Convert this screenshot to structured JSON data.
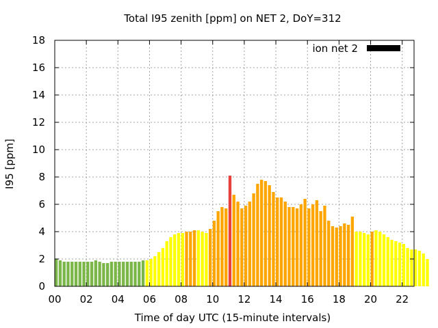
{
  "chart_data": {
    "type": "bar",
    "title": "Total I95 zenith [ppm] on NET 2, DoY=312",
    "xlabel": "Time of day UTC (15-minute intervals)",
    "ylabel": "I95 [ppm]",
    "xlim": [
      0,
      22.75
    ],
    "ylim": [
      0,
      18
    ],
    "grid": true,
    "legend_position": "top-right",
    "legend": [
      {
        "label": "ion net 2",
        "color": "#000000"
      }
    ],
    "x_ticks": [
      0,
      2,
      4,
      6,
      8,
      10,
      12,
      14,
      16,
      18,
      20,
      22
    ],
    "x_tick_labels": [
      "00",
      "02",
      "04",
      "06",
      "08",
      "10",
      "12",
      "14",
      "16",
      "18",
      "20",
      "22"
    ],
    "y_ticks": [
      0,
      2,
      4,
      6,
      8,
      10,
      12,
      14,
      16,
      18
    ],
    "y_tick_labels": [
      "0",
      "2",
      "4",
      "6",
      "8",
      "10",
      "12",
      "14",
      "16",
      "18"
    ],
    "interval_hours": 0.25,
    "bar_start_hour": 0,
    "values": [
      2.0,
      1.9,
      1.8,
      1.8,
      1.8,
      1.8,
      1.8,
      1.8,
      1.8,
      1.8,
      1.9,
      1.8,
      1.7,
      1.7,
      1.8,
      1.8,
      1.8,
      1.8,
      1.8,
      1.8,
      1.8,
      1.8,
      1.9,
      1.9,
      2.0,
      2.2,
      2.5,
      2.8,
      3.3,
      3.6,
      3.8,
      3.9,
      3.9,
      4.0,
      4.0,
      4.1,
      4.1,
      4.0,
      3.9,
      4.2,
      4.8,
      5.5,
      5.8,
      5.7,
      8.1,
      6.7,
      6.2,
      5.7,
      5.9,
      6.2,
      6.8,
      7.5,
      7.8,
      7.7,
      7.4,
      6.9,
      6.5,
      6.5,
      6.2,
      5.8,
      5.8,
      5.7,
      6.0,
      6.4,
      5.7,
      6.0,
      6.3,
      5.5,
      5.9,
      4.8,
      4.4,
      4.3,
      4.4,
      4.6,
      4.5,
      5.1,
      4.0,
      4.0,
      3.9,
      3.8,
      4.0,
      4.1,
      4.0,
      3.8,
      3.6,
      3.4,
      3.3,
      3.2,
      3.1,
      2.8,
      2.7,
      2.7,
      2.6,
      2.4,
      2.0
    ],
    "level_colors": {
      "green": "#7ab648",
      "yellow": "#ffff00",
      "orange": "#ffa500",
      "red": "#e8413c"
    },
    "bar_levels": [
      "green",
      "green",
      "green",
      "green",
      "green",
      "green",
      "green",
      "green",
      "green",
      "green",
      "green",
      "green",
      "green",
      "green",
      "green",
      "green",
      "green",
      "green",
      "green",
      "green",
      "green",
      "green",
      "green",
      "yellow",
      "yellow",
      "yellow",
      "yellow",
      "yellow",
      "yellow",
      "yellow",
      "yellow",
      "yellow",
      "yellow",
      "orange",
      "orange",
      "orange",
      "yellow",
      "yellow",
      "yellow",
      "orange",
      "orange",
      "orange",
      "orange",
      "orange",
      "red",
      "orange",
      "orange",
      "orange",
      "orange",
      "orange",
      "orange",
      "orange",
      "orange",
      "orange",
      "orange",
      "orange",
      "orange",
      "orange",
      "orange",
      "orange",
      "orange",
      "orange",
      "orange",
      "orange",
      "orange",
      "orange",
      "orange",
      "orange",
      "orange",
      "orange",
      "orange",
      "orange",
      "orange",
      "orange",
      "orange",
      "orange",
      "yellow",
      "yellow",
      "yellow",
      "yellow",
      "orange",
      "yellow",
      "yellow",
      "yellow",
      "yellow",
      "yellow",
      "yellow",
      "yellow",
      "yellow",
      "yellow",
      "yellow",
      "yellow",
      "yellow",
      "yellow",
      "yellow"
    ]
  }
}
